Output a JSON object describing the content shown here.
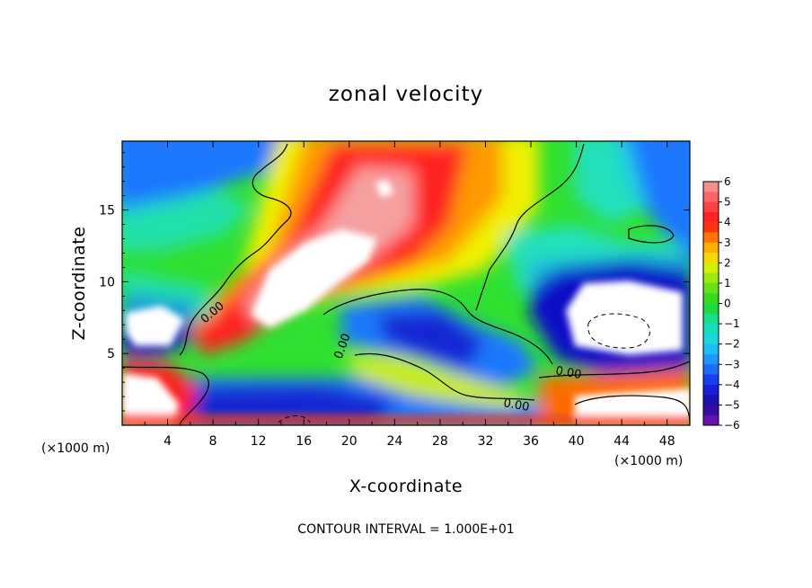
{
  "chart_data": {
    "type": "heatmap",
    "title": "zonal velocity",
    "xlabel": "X-coordinate",
    "ylabel": "Z-coordinate",
    "x_unit": "(×1000 m)",
    "x_ticks": [
      4,
      8,
      12,
      16,
      20,
      24,
      28,
      32,
      36,
      40,
      44,
      48
    ],
    "y_ticks": [
      5,
      10,
      15
    ],
    "xlim": [
      0,
      50
    ],
    "ylim": [
      0,
      19.8
    ],
    "colorbar": {
      "ticks": [
        6,
        5,
        4,
        3,
        2,
        1,
        0,
        -1,
        -2,
        -3,
        -4,
        -5,
        -6
      ],
      "range": [
        -6,
        6
      ]
    },
    "contour_labels": [
      "0.00",
      "0.00",
      "0.00",
      "0.00"
    ],
    "footer": "CONTOUR INTERVAL = 1.000E+01",
    "colors": {
      "max": "#f5a0a0",
      "red": "#ff2020",
      "orange": "#ff9a00",
      "yellow": "#f0f000",
      "green": "#30e030",
      "cyan": "#20e0e0",
      "blue": "#1e78ff",
      "deep_blue": "#1010c8",
      "min": "#7a1ab8"
    }
  }
}
